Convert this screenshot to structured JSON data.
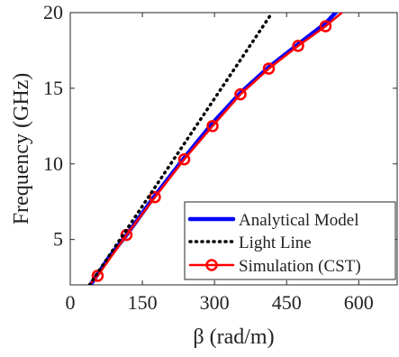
{
  "chart_data": {
    "type": "line",
    "xlabel": "β (rad/m)",
    "ylabel": "Frequency (GHz)",
    "xlim": [
      0,
      680
    ],
    "ylim": [
      2,
      20
    ],
    "x_ticks": [
      0,
      150,
      300,
      450,
      600
    ],
    "y_ticks": [
      5,
      10,
      15,
      20
    ],
    "grid": false,
    "legend_position": "bottom-right",
    "series": [
      {
        "name": "Analytical Model",
        "color": "#0000ff",
        "style": "solid",
        "x": [
          42,
          57,
          80,
          117,
          176,
          237,
          296,
          354,
          413,
          474,
          531,
          552
        ],
        "y": [
          2.0,
          2.7,
          3.8,
          5.3,
          7.9,
          10.4,
          12.7,
          14.7,
          16.4,
          17.9,
          19.3,
          20.0
        ]
      },
      {
        "name": "Light Line",
        "color": "#000000",
        "style": "dotted",
        "x": [
          40,
          420
        ],
        "y": [
          2.0,
          20.0
        ]
      },
      {
        "name": "Simulation (CST)",
        "color": "#ff0000",
        "style": "solid-circle-markers",
        "x": [
          40,
          57,
          117,
          176,
          237,
          296,
          354,
          413,
          474,
          531,
          565
        ],
        "y": [
          2.0,
          2.6,
          5.3,
          7.8,
          10.3,
          12.5,
          14.6,
          16.3,
          17.8,
          19.1,
          20.0
        ],
        "marker_indices": [
          1,
          2,
          3,
          4,
          5,
          6,
          7,
          8,
          9
        ]
      }
    ]
  }
}
